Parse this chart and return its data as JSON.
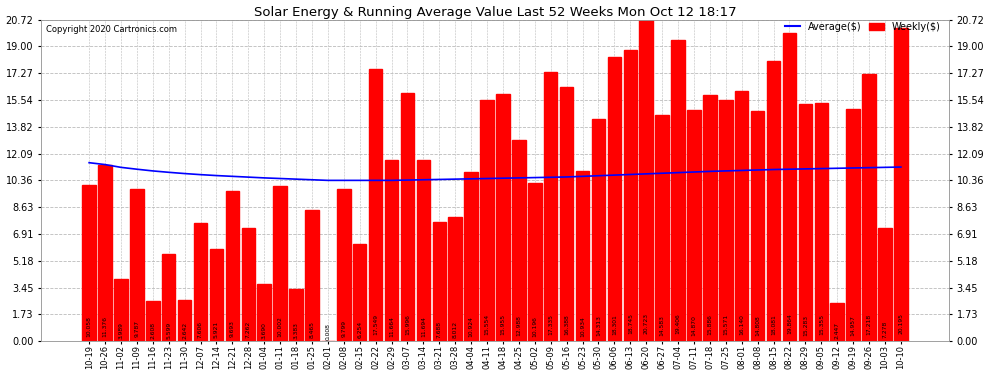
{
  "title": "Solar Energy & Running Average Value Last 52 Weeks Mon Oct 12 18:17",
  "copyright": "Copyright 2020 Cartronics.com",
  "bar_color": "#ff0000",
  "avg_line_color": "#0000ff",
  "background_color": "#ffffff",
  "grid_color": "#bbbbbb",
  "legend_avg": "Average($)",
  "legend_weekly": "Weekly($)",
  "yticks": [
    0.0,
    1.73,
    3.45,
    5.18,
    6.91,
    8.63,
    10.36,
    12.09,
    13.82,
    15.54,
    17.27,
    19.0,
    20.72
  ],
  "categories": [
    "10-19",
    "10-26",
    "11-02",
    "11-09",
    "11-16",
    "11-23",
    "11-30",
    "12-07",
    "12-14",
    "12-21",
    "12-28",
    "01-04",
    "01-11",
    "01-18",
    "01-25",
    "02-01",
    "02-08",
    "02-15",
    "02-22",
    "02-29",
    "03-07",
    "03-14",
    "03-21",
    "03-28",
    "04-04",
    "04-11",
    "04-18",
    "04-25",
    "05-02",
    "05-09",
    "05-16",
    "05-23",
    "05-30",
    "06-06",
    "06-13",
    "06-20",
    "06-27",
    "07-04",
    "07-11",
    "07-18",
    "07-25",
    "08-01",
    "08-08",
    "08-15",
    "08-22",
    "08-29",
    "09-05",
    "09-12",
    "09-19",
    "09-26",
    "10-03",
    "10-10"
  ],
  "weekly_values": [
    10.058,
    11.376,
    3.989,
    9.787,
    2.608,
    5.599,
    2.642,
    7.606,
    5.921,
    9.693,
    7.262,
    3.69,
    10.002,
    3.383,
    8.465,
    0.008,
    9.799,
    6.254,
    17.549,
    11.664,
    15.996,
    11.694,
    7.688,
    8.012,
    10.924,
    15.554,
    15.955,
    12.988,
    10.196,
    17.335,
    16.388,
    10.934,
    14.313,
    18.301,
    18.745,
    20.723,
    14.583,
    19.406,
    14.87,
    15.886,
    15.571,
    16.14,
    14.808,
    18.081,
    19.864,
    15.283,
    15.355,
    2.447,
    14.957,
    17.218,
    7.278,
    20.195
  ],
  "avg_values": [
    11.5,
    11.38,
    11.2,
    11.08,
    10.97,
    10.88,
    10.8,
    10.73,
    10.67,
    10.62,
    10.57,
    10.52,
    10.48,
    10.44,
    10.4,
    10.36,
    10.36,
    10.36,
    10.36,
    10.36,
    10.38,
    10.4,
    10.42,
    10.44,
    10.46,
    10.48,
    10.5,
    10.52,
    10.54,
    10.56,
    10.58,
    10.62,
    10.66,
    10.7,
    10.74,
    10.78,
    10.82,
    10.86,
    10.9,
    10.94,
    10.97,
    11.0,
    11.03,
    11.06,
    11.08,
    11.1,
    11.12,
    11.14,
    11.16,
    11.18,
    11.2,
    11.22
  ]
}
